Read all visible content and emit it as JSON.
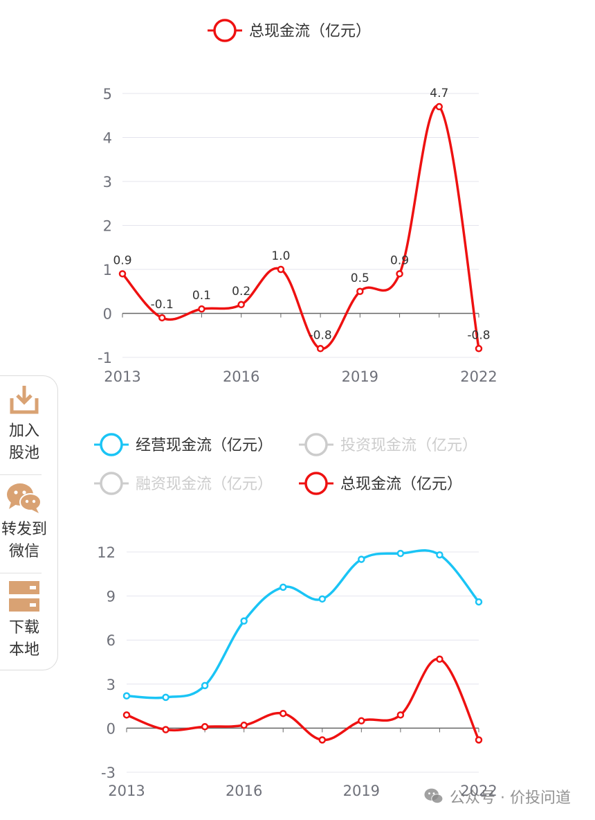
{
  "colors": {
    "red": "#ee1111",
    "cyan": "#1ac4f5",
    "inactive": "#cccccc",
    "grid": "#e4e4ee",
    "axis": "#666666",
    "tick_text": "#6e7079",
    "label_text": "#333333",
    "sidebar_icon": "#d9a273"
  },
  "chart_data": [
    {
      "type": "line",
      "title": "",
      "legend": [
        "总现金流（亿元）"
      ],
      "legend_position": "top-center",
      "x": [
        "2013",
        "2014",
        "2015",
        "2016",
        "2017",
        "2018",
        "2019",
        "2020",
        "2021",
        "2022"
      ],
      "x_tick_labels": [
        "2013",
        "2016",
        "2019",
        "2022"
      ],
      "y_ticks": [
        -1,
        0,
        1,
        2,
        3,
        4,
        5
      ],
      "ylim": [
        -1,
        5
      ],
      "grid": true,
      "smooth": true,
      "data_labels": true,
      "series": [
        {
          "name": "总现金流（亿元）",
          "color": "#ee1111",
          "values": [
            0.9,
            -0.1,
            0.1,
            0.2,
            1.0,
            -0.8,
            0.5,
            0.9,
            4.7,
            -0.8
          ],
          "labels": [
            "0.9",
            "-0.1",
            "0.1",
            "0.2",
            "1.0",
            "-0.8",
            "0.5",
            "0.9",
            "4.7",
            "-0.8"
          ]
        }
      ]
    },
    {
      "type": "line",
      "title": "",
      "legend": [
        "经营现金流（亿元）",
        "投资现金流（亿元）",
        "融资现金流（亿元）",
        "总现金流（亿元）"
      ],
      "legend_position": "top-center",
      "legend_active": [
        true,
        false,
        false,
        true
      ],
      "x": [
        "2013",
        "2014",
        "2015",
        "2016",
        "2017",
        "2018",
        "2019",
        "2020",
        "2021",
        "2022"
      ],
      "x_tick_labels": [
        "2013",
        "2016",
        "2019",
        "2022"
      ],
      "y_ticks": [
        -3,
        0,
        3,
        6,
        9,
        12
      ],
      "ylim": [
        -3,
        12
      ],
      "grid": true,
      "smooth": true,
      "data_labels": false,
      "series": [
        {
          "name": "经营现金流（亿元）",
          "color": "#1ac4f5",
          "values": [
            2.2,
            2.1,
            2.9,
            7.3,
            9.6,
            8.8,
            11.5,
            11.9,
            11.8,
            8.6
          ]
        },
        {
          "name": "总现金流（亿元）",
          "color": "#ee1111",
          "values": [
            0.9,
            -0.1,
            0.1,
            0.2,
            1.0,
            -0.8,
            0.5,
            0.9,
            4.7,
            -0.8
          ]
        }
      ]
    }
  ],
  "sidebar": {
    "items": [
      {
        "label": "加入\n股池",
        "icon": "download-icon"
      },
      {
        "label": "转发到\n微信",
        "icon": "wechat-icon"
      },
      {
        "label": "下载\n本地",
        "icon": "server-icon"
      }
    ]
  },
  "watermark": {
    "text": "公众号 · 价投问道",
    "icon": "wechat-icon"
  }
}
